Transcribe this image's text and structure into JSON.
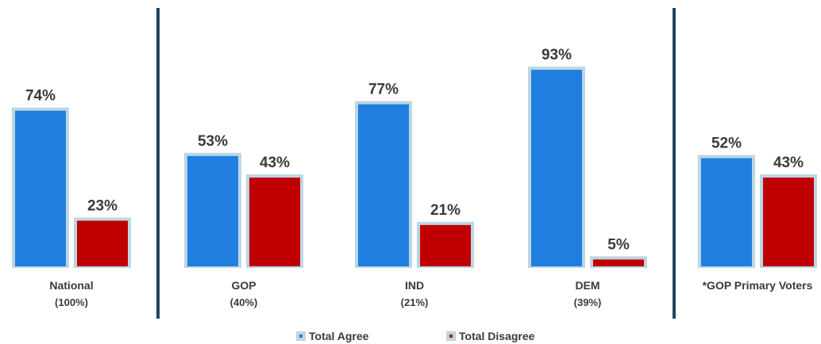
{
  "legend": {
    "agree_label": "Total Agree",
    "disagree_label": "Total Disagree"
  },
  "colors": {
    "agree": "#1f7ee0",
    "disagree": "#c00000",
    "border": "#bcd6e3",
    "divider": "#1e4560",
    "text": "#3a3a3a"
  },
  "chart_data": {
    "type": "bar",
    "title": "",
    "xlabel": "",
    "ylabel": "",
    "ylim": [
      0,
      100
    ],
    "grid": false,
    "legend_position": "bottom",
    "categories": [
      {
        "name": "National",
        "share": "(100%)"
      },
      {
        "name": "GOP",
        "share": "(40%)"
      },
      {
        "name": "IND",
        "share": "(21%)"
      },
      {
        "name": "DEM",
        "share": "(39%)"
      },
      {
        "name": "*GOP Primary Voters",
        "share": ""
      }
    ],
    "series": [
      {
        "name": "Total Agree",
        "values": [
          74,
          53,
          77,
          93,
          52
        ],
        "labels": [
          "74%",
          "53%",
          "77%",
          "93%",
          "52%"
        ]
      },
      {
        "name": "Total Disagree",
        "values": [
          23,
          43,
          21,
          5,
          43
        ],
        "labels": [
          "23%",
          "43%",
          "21%",
          "5%",
          "43%"
        ]
      }
    ]
  }
}
